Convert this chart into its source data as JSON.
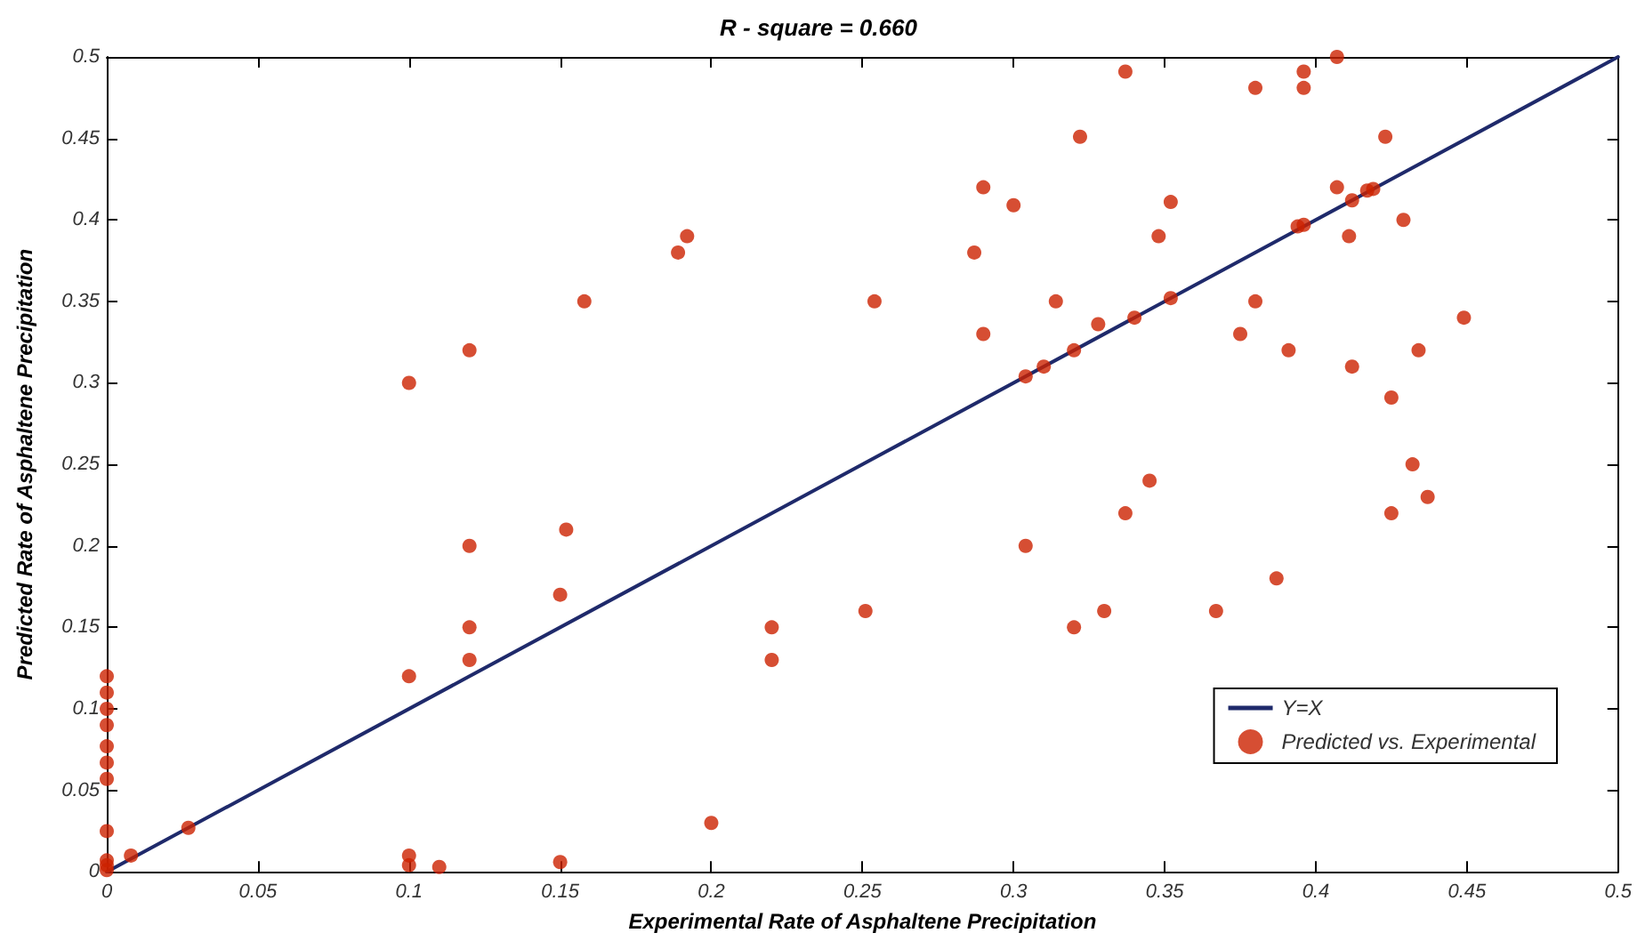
{
  "chart_data": {
    "type": "scatter",
    "title": "R - square = 0.660",
    "xlabel": "Experimental Rate of Asphaltene Precipitation",
    "ylabel": "Predicted Rate of Asphaltene Precipitation",
    "xlim": [
      0,
      0.5
    ],
    "ylim": [
      0,
      0.5
    ],
    "xticks": [
      0,
      0.05,
      0.1,
      0.15,
      0.2,
      0.25,
      0.3,
      0.35,
      0.4,
      0.45,
      0.5
    ],
    "yticks": [
      0,
      0.05,
      0.1,
      0.15,
      0.2,
      0.25,
      0.3,
      0.35,
      0.4,
      0.45,
      0.5
    ],
    "grid": false,
    "legend": "bottom right",
    "series": [
      {
        "name": "Y=X",
        "type": "line",
        "color": "#1f2a6b",
        "marker": "none",
        "line_style": "solid",
        "x": [
          0,
          0.5
        ],
        "values": [
          0,
          0.5
        ]
      },
      {
        "name": "Predicted vs. Experimental",
        "color": "#cc2200",
        "marker": "circle",
        "x": [
          0,
          0,
          0,
          0,
          0,
          0,
          0,
          0,
          0,
          0,
          0,
          0.008,
          0.027,
          0.1,
          0.1,
          0.1,
          0.1,
          0.11,
          0.12,
          0.12,
          0.12,
          0.12,
          0.15,
          0.152,
          0.15,
          0.158,
          0.189,
          0.192,
          0.2,
          0.22,
          0.22,
          0.254,
          0.287,
          0.29,
          0.29,
          0.3,
          0.314,
          0.304,
          0.31,
          0.32,
          0.322,
          0.328,
          0.337,
          0.34,
          0.348,
          0.352,
          0.352,
          0.375,
          0.38,
          0.38,
          0.391,
          0.394,
          0.396,
          0.396,
          0.396,
          0.407,
          0.407,
          0.411,
          0.412,
          0.412,
          0.417,
          0.419,
          0.423,
          0.429,
          0.434,
          0.449,
          0.425,
          0.432,
          0.437,
          0.425,
          0.345,
          0.337,
          0.304,
          0.251,
          0.32,
          0.33,
          0.367,
          0.387
        ],
        "values": [
          0.12,
          0.11,
          0.1,
          0.09,
          0.077,
          0.067,
          0.057,
          0.025,
          0.007,
          0.004,
          0.001,
          0.01,
          0.027,
          0.3,
          0.12,
          0.01,
          0.004,
          0.003,
          0.32,
          0.2,
          0.15,
          0.13,
          0.17,
          0.21,
          0.006,
          0.35,
          0.38,
          0.39,
          0.03,
          0.15,
          0.13,
          0.35,
          0.38,
          0.42,
          0.33,
          0.409,
          0.35,
          0.304,
          0.31,
          0.32,
          0.451,
          0.336,
          0.491,
          0.34,
          0.39,
          0.411,
          0.352,
          0.33,
          0.481,
          0.35,
          0.32,
          0.396,
          0.397,
          0.491,
          0.481,
          0.5,
          0.42,
          0.39,
          0.412,
          0.31,
          0.418,
          0.419,
          0.451,
          0.4,
          0.32,
          0.34,
          0.291,
          0.25,
          0.23,
          0.22,
          0.24,
          0.22,
          0.2,
          0.16,
          0.15,
          0.16,
          0.16,
          0.18
        ]
      }
    ]
  }
}
